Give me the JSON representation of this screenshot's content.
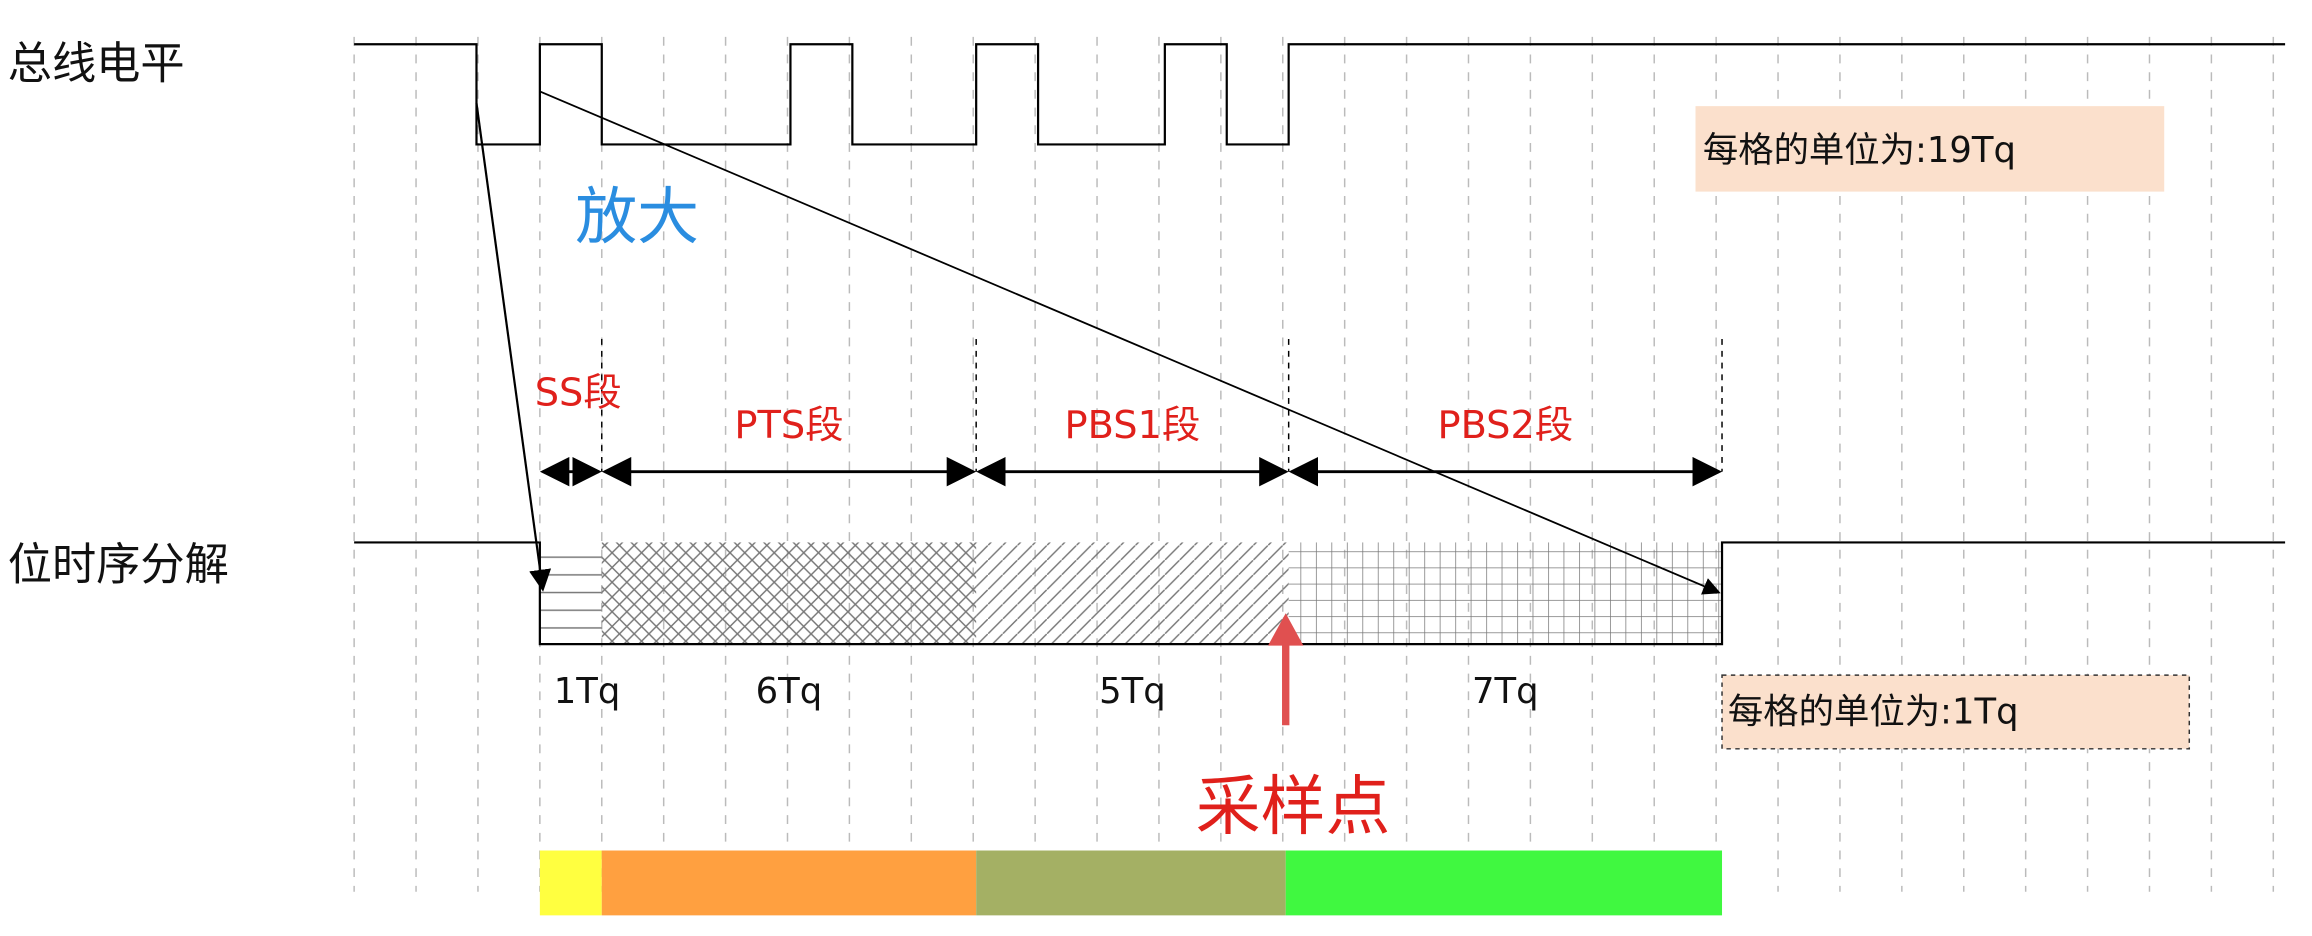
{
  "labels": {
    "bus_level": "总线电平",
    "bit_timing": "位时序分解"
  },
  "zoom": "放大",
  "segments": [
    {
      "name": "SS段",
      "duration": "1Tq"
    },
    {
      "name": "PTS段",
      "duration": "6Tq"
    },
    {
      "name": "PBS1段",
      "duration": "5Tq"
    },
    {
      "name": "PBS2段",
      "duration": "7Tq"
    }
  ],
  "notes": {
    "upper": "每格的单位为:19Tq",
    "lower": "每格的单位为:1Tq"
  },
  "sample_point": "采样点"
}
